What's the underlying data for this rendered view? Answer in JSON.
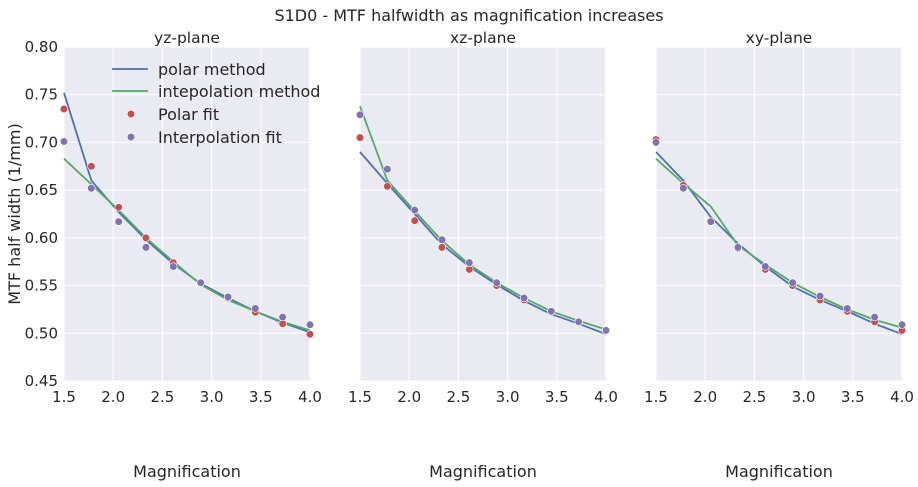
{
  "figure": {
    "title": "S1D0 - MTF halfwidth as magnification increases"
  },
  "colors": {
    "axes_bg": "#EAEAF2",
    "grid": "#FFFFFF",
    "polar_line": "#4C72B0",
    "interp_line": "#55A868",
    "polar_fit": "#C44E52",
    "interp_fit": "#8172B2",
    "text": "#262626"
  },
  "chart_data": [
    {
      "type": "line",
      "title": "yz-plane",
      "xlabel": "Magnification",
      "ylabel": "MTF half width (1/mm)",
      "xlim": [
        1.5,
        4.0
      ],
      "ylim": [
        0.45,
        0.8
      ],
      "xticks": [
        "1.5",
        "2.0",
        "2.5",
        "3.0",
        "3.5",
        "4.0"
      ],
      "yticks": [
        "0.45",
        "0.50",
        "0.55",
        "0.60",
        "0.65",
        "0.70",
        "0.75",
        "0.80"
      ],
      "grid": true,
      "legend": {
        "placement": "upper-left",
        "entries": [
          "polar method",
          "intepolation method",
          "Polar fit",
          "Interpolation fit"
        ]
      },
      "x": [
        1.5,
        1.778,
        2.056,
        2.333,
        2.611,
        2.889,
        3.167,
        3.444,
        3.722,
        4.0
      ],
      "series": [
        {
          "name": "polar method",
          "kind": "line",
          "values": [
            0.752,
            0.66,
            0.627,
            0.598,
            0.573,
            0.552,
            0.537,
            0.523,
            0.511,
            0.501
          ]
        },
        {
          "name": "intepolation method",
          "kind": "line",
          "values": [
            0.683,
            0.656,
            0.629,
            0.6,
            0.575,
            0.551,
            0.535,
            0.523,
            0.512,
            0.503
          ]
        },
        {
          "name": "Polar fit",
          "kind": "marker",
          "values": [
            0.735,
            0.675,
            0.632,
            0.6,
            0.574,
            0.553,
            0.537,
            0.522,
            0.51,
            0.499
          ]
        },
        {
          "name": "Interpolation fit",
          "kind": "marker",
          "values": [
            0.701,
            0.652,
            0.617,
            0.59,
            0.57,
            0.553,
            0.538,
            0.526,
            0.517,
            0.509
          ]
        }
      ]
    },
    {
      "type": "line",
      "title": "xz-plane",
      "xlabel": "Magnification",
      "xlim": [
        1.5,
        4.0
      ],
      "ylim": [
        0.45,
        0.8
      ],
      "xticks": [
        "1.5",
        "2.0",
        "2.5",
        "3.0",
        "3.5",
        "4.0"
      ],
      "grid": true,
      "x": [
        1.5,
        1.778,
        2.056,
        2.333,
        2.611,
        2.889,
        3.167,
        3.444,
        3.722,
        4.0
      ],
      "series": [
        {
          "name": "polar method",
          "kind": "line",
          "values": [
            0.69,
            0.657,
            0.625,
            0.593,
            0.57,
            0.551,
            0.534,
            0.52,
            0.51,
            0.499
          ]
        },
        {
          "name": "intepolation method",
          "kind": "line",
          "values": [
            0.738,
            0.66,
            0.628,
            0.597,
            0.572,
            0.553,
            0.537,
            0.523,
            0.513,
            0.504
          ]
        },
        {
          "name": "Polar fit",
          "kind": "marker",
          "values": [
            0.705,
            0.654,
            0.618,
            0.59,
            0.567,
            0.55,
            0.535,
            0.523,
            0.512,
            0.503
          ]
        },
        {
          "name": "Interpolation fit",
          "kind": "marker",
          "values": [
            0.729,
            0.672,
            0.629,
            0.598,
            0.574,
            0.553,
            0.537,
            0.523,
            0.512,
            0.503
          ]
        }
      ]
    },
    {
      "type": "line",
      "title": "xy-plane",
      "xlabel": "Magnification",
      "xlim": [
        1.5,
        4.0
      ],
      "ylim": [
        0.45,
        0.8
      ],
      "xticks": [
        "1.5",
        "2.0",
        "2.5",
        "3.0",
        "3.5",
        "4.0"
      ],
      "grid": true,
      "x": [
        1.5,
        1.778,
        2.056,
        2.333,
        2.611,
        2.889,
        3.167,
        3.444,
        3.722,
        4.0
      ],
      "series": [
        {
          "name": "polar method",
          "kind": "line",
          "values": [
            0.69,
            0.66,
            0.622,
            0.594,
            0.57,
            0.549,
            0.535,
            0.523,
            0.51,
            0.499
          ]
        },
        {
          "name": "intepolation method",
          "kind": "line",
          "values": [
            0.683,
            0.657,
            0.633,
            0.592,
            0.572,
            0.553,
            0.538,
            0.525,
            0.514,
            0.506
          ]
        },
        {
          "name": "Polar fit",
          "kind": "marker",
          "values": [
            0.703,
            0.655,
            0.617,
            0.589,
            0.567,
            0.55,
            0.535,
            0.523,
            0.512,
            0.503
          ]
        },
        {
          "name": "Interpolation fit",
          "kind": "marker",
          "values": [
            0.7,
            0.652,
            0.617,
            0.59,
            0.57,
            0.553,
            0.539,
            0.526,
            0.517,
            0.509
          ]
        }
      ]
    }
  ]
}
